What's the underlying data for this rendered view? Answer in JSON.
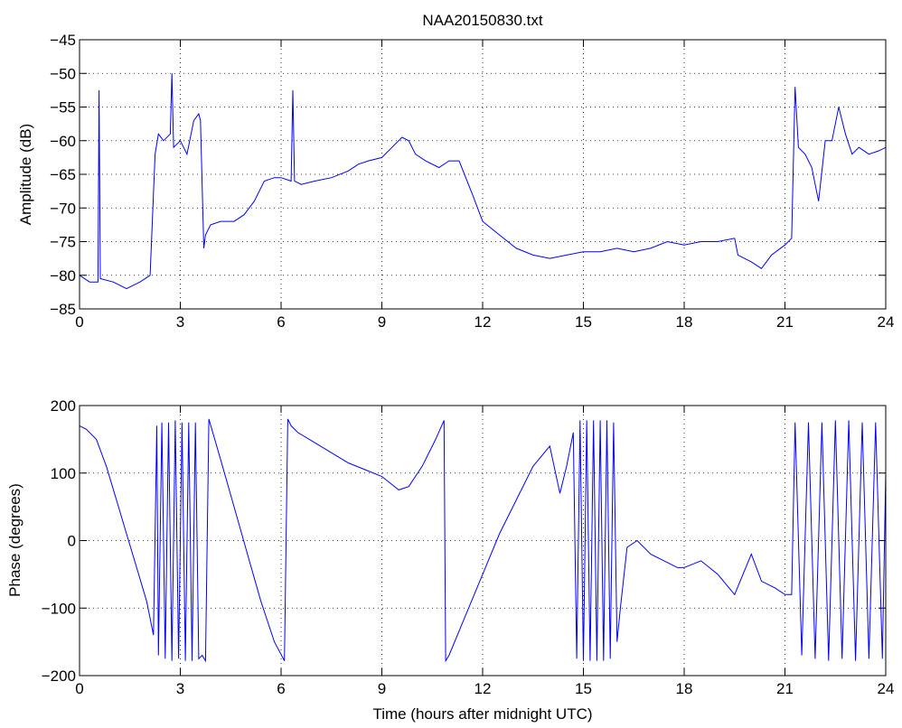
{
  "chart_data": [
    {
      "type": "line",
      "title": "NAA20150830.txt",
      "xlabel": "",
      "ylabel": "Amplitude (dB)",
      "xlim": [
        0,
        24
      ],
      "ylim": [
        -85,
        -45
      ],
      "xticks": [
        "0",
        "3",
        "6",
        "9",
        "12",
        "15",
        "18",
        "21",
        "24"
      ],
      "yticks": [
        "-85",
        "-80",
        "-75",
        "-70",
        "-65",
        "-60",
        "-55",
        "-50",
        "-45"
      ],
      "grid": true,
      "color": "#0000ff",
      "series": [
        {
          "x": [
            0,
            0.3,
            0.55,
            0.58,
            0.62,
            1.0,
            1.4,
            1.8,
            2.1,
            2.25,
            2.35,
            2.5,
            2.7,
            2.75,
            2.8,
            3.0,
            3.2,
            3.4,
            3.55,
            3.6,
            3.7,
            3.75,
            3.9,
            4.2,
            4.6,
            4.9,
            5.2,
            5.5,
            5.8,
            6.0,
            6.3,
            6.35,
            6.4,
            6.6,
            7.0,
            7.5,
            8.0,
            8.3,
            8.6,
            9.0,
            9.3,
            9.6,
            9.8,
            10.0,
            10.3,
            10.7,
            11.0,
            11.3,
            11.7,
            12.0,
            12.5,
            13.0,
            13.5,
            14.0,
            14.5,
            15.0,
            15.5,
            16.0,
            16.5,
            17.0,
            17.5,
            18.0,
            18.5,
            19.0,
            19.5,
            19.6,
            20.0,
            20.3,
            20.6,
            21.0,
            21.2,
            21.3,
            21.4,
            21.6,
            21.8,
            22.0,
            22.2,
            22.4,
            22.6,
            22.8,
            23.0,
            23.2,
            23.5,
            23.8,
            24.0
          ],
          "values": [
            -80,
            -81,
            -81,
            -52.5,
            -80.5,
            -81,
            -82,
            -81,
            -80,
            -62,
            -59,
            -60,
            -59,
            -50,
            -61,
            -60,
            -62,
            -57,
            -56,
            -57,
            -76,
            -74,
            -72.5,
            -72,
            -72,
            -71,
            -69,
            -66,
            -65.5,
            -65.5,
            -66,
            -52.5,
            -66,
            -66.5,
            -66,
            -65.5,
            -64.5,
            -63.5,
            -63,
            -62.5,
            -61,
            -59.5,
            -60,
            -62,
            -63,
            -64,
            -63,
            -63,
            -68,
            -72,
            -74,
            -76,
            -77,
            -77.5,
            -77,
            -76.5,
            -76.5,
            -76,
            -76.5,
            -76,
            -75,
            -75.5,
            -75,
            -75,
            -74.5,
            -77,
            -78,
            -79,
            -77,
            -75.5,
            -74.5,
            -52,
            -61,
            -62,
            -64,
            -69,
            -60,
            -60,
            -55,
            -59,
            -62,
            -61,
            -62,
            -61.5,
            -61
          ]
        }
      ]
    },
    {
      "type": "line",
      "title": "",
      "xlabel": "Time (hours after midnight UTC)",
      "ylabel": "Phase (degrees)",
      "xlim": [
        0,
        24
      ],
      "ylim": [
        -200,
        200
      ],
      "xticks": [
        "0",
        "3",
        "6",
        "9",
        "12",
        "15",
        "18",
        "21",
        "24"
      ],
      "yticks": [
        "-200",
        "-100",
        "0",
        "100",
        "200"
      ],
      "grid": true,
      "color": "#0000ff",
      "series": [
        {
          "x": [
            0,
            0.2,
            0.5,
            0.8,
            1.1,
            1.4,
            1.7,
            2.0,
            2.2,
            2.3,
            2.35,
            2.45,
            2.55,
            2.65,
            2.75,
            2.85,
            2.95,
            3.05,
            3.15,
            3.25,
            3.35,
            3.45,
            3.55,
            3.65,
            3.75,
            3.85,
            4.2,
            4.6,
            5.0,
            5.4,
            5.8,
            6.1,
            6.2,
            6.3,
            6.5,
            7.0,
            7.5,
            8.0,
            8.5,
            9.0,
            9.5,
            9.8,
            10.2,
            10.6,
            10.85,
            10.9,
            11.0,
            11.5,
            12.0,
            12.5,
            13.0,
            13.5,
            14.0,
            14.3,
            14.5,
            14.7,
            14.8,
            14.9,
            15.0,
            15.1,
            15.2,
            15.3,
            15.4,
            15.5,
            15.6,
            15.7,
            15.8,
            15.9,
            16.0,
            16.1,
            16.3,
            16.6,
            17.0,
            17.4,
            17.8,
            18.0,
            18.5,
            19.0,
            19.5,
            20.0,
            20.3,
            20.7,
            21.0,
            21.2,
            21.3,
            21.5,
            21.7,
            21.9,
            22.1,
            22.3,
            22.5,
            22.7,
            22.9,
            23.1,
            23.3,
            23.5,
            23.7,
            23.9,
            24.0
          ],
          "values": [
            170,
            165,
            150,
            110,
            60,
            10,
            -40,
            -90,
            -140,
            170,
            -170,
            175,
            -175,
            175,
            -178,
            178,
            -175,
            175,
            -178,
            175,
            -178,
            175,
            -175,
            -170,
            -178,
            180,
            120,
            50,
            -20,
            -90,
            -150,
            -178,
            180,
            170,
            160,
            145,
            130,
            115,
            105,
            95,
            75,
            80,
            110,
            150,
            178,
            -178,
            -170,
            -110,
            -50,
            10,
            60,
            110,
            140,
            70,
            110,
            160,
            -175,
            178,
            -178,
            178,
            -178,
            178,
            -178,
            178,
            -178,
            178,
            -175,
            175,
            -150,
            -100,
            -10,
            0,
            -20,
            -30,
            -40,
            -40,
            -30,
            -50,
            -80,
            -20,
            -60,
            -70,
            -80,
            -80,
            175,
            -170,
            175,
            -175,
            175,
            -178,
            178,
            -175,
            178,
            -178,
            175,
            -175,
            175,
            -175,
            100
          ]
        }
      ]
    }
  ]
}
